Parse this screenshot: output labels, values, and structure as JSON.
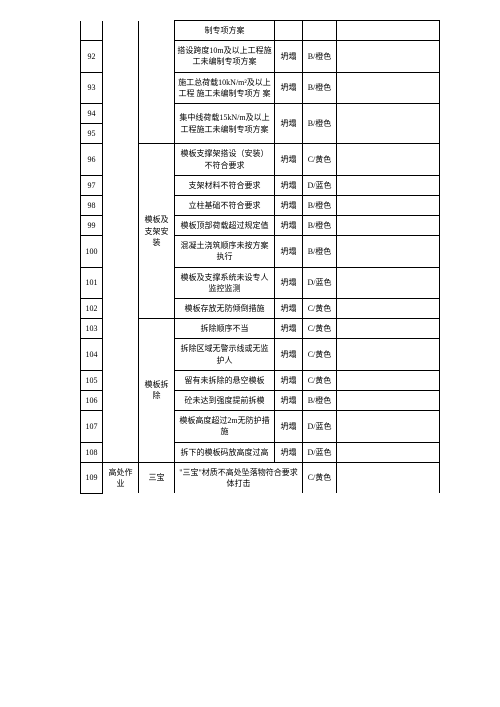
{
  "rows": [
    {
      "num": "",
      "desc": "制专项方案",
      "risk": "",
      "level": ""
    },
    {
      "num": "92",
      "desc": "搭设跨度10m及以上工程施工未编制专项方案",
      "risk": "坍塌",
      "level": "B/橙色"
    },
    {
      "num": "93",
      "desc": "施工总荷载10kN/m²及以上工程 施工未编制专项方 案",
      "risk": "坍塌",
      "level": "B/橙色"
    },
    {
      "num": "94",
      "desc": "集中线荷载15kN/m及以上工程施工未编制专项方案",
      "risk": "坍塌",
      "level": "B/橙色"
    },
    {
      "num": "95",
      "desc": "",
      "risk": "",
      "level": ""
    },
    {
      "num": "96",
      "desc": "模板支撑架搭设（安装）不符合要求",
      "risk": "坍塌",
      "level": "C/黄色"
    },
    {
      "num": "97",
      "desc": "支架材料不符合要求",
      "risk": "坍塌",
      "level": "D/蓝色"
    },
    {
      "num": "98",
      "desc": "立柱基础不符合要求",
      "risk": "坍塌",
      "level": "B/橙色"
    },
    {
      "num": "99",
      "desc": "模板顶部荷载超过规定值",
      "risk": "坍塌",
      "level": "B/橙色"
    },
    {
      "num": "100",
      "desc": "混凝土浇筑顺序未按方案执行",
      "risk": "坍塌",
      "level": "B/橙色"
    },
    {
      "num": "101",
      "desc": "模板及支撑系统未设专人监控监测",
      "risk": "坍塌",
      "level": "D/蓝色"
    },
    {
      "num": "102",
      "desc": "模板存放无防倾倒措施",
      "risk": "坍塌",
      "level": "C/黄色"
    },
    {
      "num": "103",
      "desc": "拆除顺序不当",
      "risk": "坍塌",
      "level": "C/黄色"
    },
    {
      "num": "104",
      "desc": "拆除区域无警示线或无监护人",
      "risk": "坍塌",
      "level": "C/黄色"
    },
    {
      "num": "105",
      "desc": "留有未拆除的悬空模板",
      "risk": "坍塌",
      "level": "C/黄色"
    },
    {
      "num": "106",
      "desc": "砼未达到强度提前拆模",
      "risk": "坍塌",
      "level": "B/橙色"
    },
    {
      "num": "107",
      "desc": "模板高度超过2m无防护措施",
      "risk": "坍塌",
      "level": "D/蓝色"
    },
    {
      "num": "108",
      "desc": "拆下的模板码放高度过高",
      "risk": "坍塌",
      "level": "D/蓝色"
    },
    {
      "num": "109",
      "desc": "\"三宝\"材质不高处坠落物符合要求体打击",
      "risk": "",
      "level": "C/黄色"
    }
  ],
  "cat_mid": "模板及支架安装",
  "cat_bot": "模板拆除",
  "cat109a": "高处作业",
  "cat109b": "三宝"
}
